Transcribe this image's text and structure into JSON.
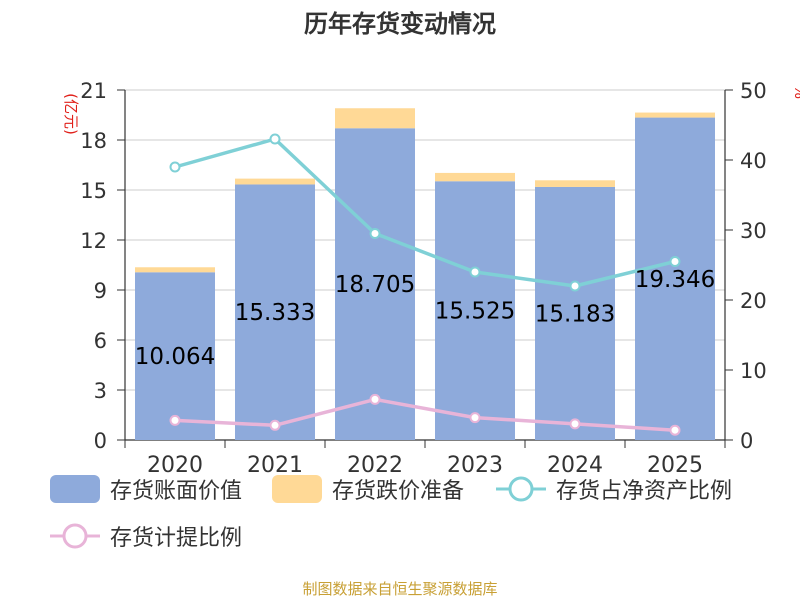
{
  "title": "历年存货变动情况",
  "y_left_unit": "(亿元)",
  "y_right_unit": "%",
  "source_text": "制图数据来自恒生聚源数据库",
  "colors": {
    "book_value": "#8eaadb",
    "provision": "#ffd996",
    "ratio_net_assets": "#7fd0d6",
    "provision_ratio": "#e8b4d8",
    "axis_unit": "#e0201a",
    "source": "#c8a035"
  },
  "chart_data": {
    "type": "bar",
    "categories": [
      "2020",
      "2021",
      "2022",
      "2023",
      "2024",
      "2025"
    ],
    "series": [
      {
        "name": "存货账面价值",
        "type": "bar",
        "stack": "total",
        "axis": "left",
        "values": [
          10.064,
          15.333,
          18.705,
          15.525,
          15.183,
          19.346
        ],
        "labels": [
          "10.064",
          "15.333",
          "18.705",
          "15.525",
          "15.183",
          "19.346"
        ]
      },
      {
        "name": "存货跌价准备",
        "type": "bar",
        "stack": "total",
        "axis": "left",
        "values": [
          0.3,
          0.35,
          1.2,
          0.5,
          0.4,
          0.3
        ]
      },
      {
        "name": "存货占净资产比例",
        "type": "line",
        "axis": "right",
        "values": [
          39,
          43,
          29.5,
          24,
          22,
          25.5
        ]
      },
      {
        "name": "存货计提比例",
        "type": "line",
        "axis": "right",
        "values": [
          2.8,
          2.1,
          5.8,
          3.2,
          2.3,
          1.4
        ]
      }
    ],
    "y_left": {
      "ylim": [
        0,
        21
      ],
      "ticks": [
        "0",
        "3",
        "6",
        "9",
        "12",
        "15",
        "18",
        "21"
      ]
    },
    "y_right": {
      "ylim": [
        0,
        50
      ],
      "ticks": [
        "0",
        "10",
        "20",
        "30",
        "40",
        "50"
      ]
    },
    "grid": true,
    "legend_position": "bottom"
  }
}
